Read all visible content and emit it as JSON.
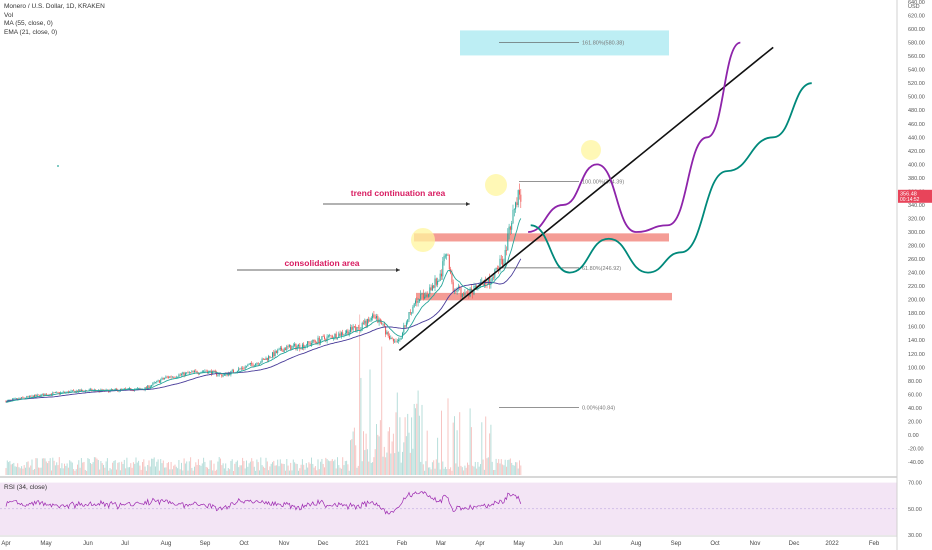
{
  "header": {
    "symbol": "Monero / U.S. Dollar, 1D, KRAKEN",
    "vol": "Vol",
    "ma": "MA (55, close, 0)",
    "ema": "EMA (21, close, 0)"
  },
  "rsi_label": "RSI (34, close)",
  "chart_data": [
    {
      "type": "candlestick",
      "title": "Monero / U.S. Dollar, 1D, KRAKEN",
      "xlabel": "",
      "ylabel": "",
      "ylim": [
        -55,
        655
      ],
      "y_scale": "linear",
      "grid": false,
      "y_ticks": [
        "640.00",
        "620.00",
        "600.00",
        "580.00",
        "560.00",
        "540.00",
        "520.00",
        "500.00",
        "480.00",
        "460.00",
        "440.00",
        "420.00",
        "400.00",
        "380.00",
        "360.00",
        "340.00",
        "320.00",
        "300.00",
        "280.00",
        "260.00",
        "240.00",
        "220.00",
        "200.00",
        "180.00",
        "160.00",
        "140.00",
        "120.00",
        "100.00",
        "80.00",
        "60.00",
        "40.00",
        "20.00",
        "0.00",
        "-20.00",
        "-40.00"
      ],
      "y_top_label": "USD",
      "x_ticks": [
        "Apr",
        "May",
        "Jun",
        "Jul",
        "Aug",
        "Sep",
        "Oct",
        "Nov",
        "Dec",
        "2021",
        "Feb",
        "Mar",
        "Apr",
        "May",
        "Jun",
        "Jul",
        "Aug",
        "Sep",
        "Oct",
        "Nov",
        "Dec",
        "2022",
        "Feb"
      ],
      "price_badge": {
        "value": "356.48",
        "sub": "00:14:52",
        "color": "#e8445a"
      },
      "close_series": [
        [
          "2020-04-01",
          50
        ],
        [
          "2020-04-15",
          55
        ],
        [
          "2020-05-01",
          60
        ],
        [
          "2020-05-15",
          63
        ],
        [
          "2020-06-01",
          66
        ],
        [
          "2020-06-15",
          65
        ],
        [
          "2020-07-01",
          67
        ],
        [
          "2020-07-15",
          68
        ],
        [
          "2020-08-01",
          85
        ],
        [
          "2020-08-15",
          90
        ],
        [
          "2020-09-01",
          95
        ],
        [
          "2020-09-15",
          88
        ],
        [
          "2020-10-01",
          100
        ],
        [
          "2020-10-15",
          110
        ],
        [
          "2020-11-01",
          128
        ],
        [
          "2020-11-15",
          132
        ],
        [
          "2020-12-01",
          142
        ],
        [
          "2020-12-15",
          150
        ],
        [
          "2021-01-01",
          160
        ],
        [
          "2021-01-10",
          175
        ],
        [
          "2021-01-15",
          165
        ],
        [
          "2021-01-25",
          135
        ],
        [
          "2021-02-01",
          150
        ],
        [
          "2021-02-10",
          195
        ],
        [
          "2021-02-20",
          210
        ],
        [
          "2021-03-01",
          235
        ],
        [
          "2021-03-05",
          275
        ],
        [
          "2021-03-10",
          218
        ],
        [
          "2021-03-20",
          205
        ],
        [
          "2021-04-01",
          220
        ],
        [
          "2021-04-10",
          228
        ],
        [
          "2021-04-20",
          265
        ],
        [
          "2021-04-25",
          320
        ],
        [
          "2021-05-01",
          360
        ],
        [
          "2021-05-03",
          340
        ]
      ],
      "moving_averages": [
        {
          "name": "MA (55, close, 0)",
          "color": "#4a3d9a"
        },
        {
          "name": "EMA (21, close, 0)",
          "color": "#26a69a"
        }
      ],
      "annotations": {
        "texts": [
          {
            "text": "trend continuation area",
            "color": "#d81b60"
          },
          {
            "text": "consolidation area",
            "color": "#d81b60"
          }
        ],
        "fib_levels": [
          {
            "label": "161.80%(580.38)",
            "value": 580.38
          },
          {
            "label": "100.00%(374.39)",
            "value": 374.39
          },
          {
            "label": "61.80%(246.92)",
            "value": 246.92
          },
          {
            "label": "0.00%(40.84)",
            "value": 40.84
          }
        ],
        "zones": [
          {
            "name": "upper red zone",
            "range": [
              286,
              298
            ],
            "color": "#f28b82"
          },
          {
            "name": "lower red zone",
            "range": [
              199,
              210
            ],
            "color": "#f28b82"
          },
          {
            "name": "target zone",
            "range": [
              561,
              598
            ],
            "color": "#b2ebf2"
          }
        ],
        "trend_line": {
          "from": [
            "2021-01-29",
            125
          ],
          "to": [
            "2021-11-15",
            573
          ]
        },
        "projection_purple": [
          [
            "2021-05-08",
            300
          ],
          [
            "2021-06-05",
            340
          ],
          [
            "2021-07-01",
            400
          ],
          [
            "2021-08-01",
            300
          ],
          [
            "2021-08-25",
            310
          ],
          [
            "2021-09-25",
            440
          ],
          [
            "2021-10-20",
            580
          ]
        ],
        "projection_green": [
          [
            "2021-05-10",
            310
          ],
          [
            "2021-06-10",
            240
          ],
          [
            "2021-07-10",
            290
          ],
          [
            "2021-08-10",
            240
          ],
          [
            "2021-09-05",
            270
          ],
          [
            "2021-10-10",
            390
          ],
          [
            "2021-11-15",
            440
          ],
          [
            "2021-12-15",
            520
          ]
        ]
      }
    },
    {
      "type": "line",
      "title": "RSI (34, close)",
      "y_ticks": [
        "70.00",
        "50.00",
        "30.00"
      ],
      "ylim": [
        30,
        72
      ],
      "band": [
        30,
        70
      ],
      "series": [
        {
          "name": "RSI (34, close)",
          "color": "#9c27b0"
        }
      ]
    }
  ]
}
